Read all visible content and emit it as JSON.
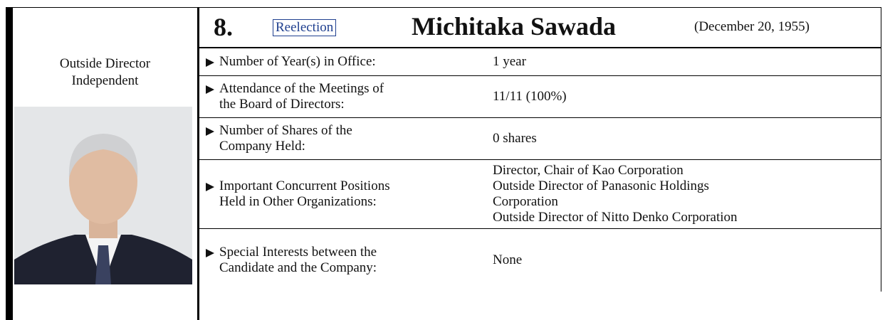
{
  "header": {
    "number": "8.",
    "badge": "Reelection",
    "name": "Michitaka Sawada",
    "birth_date": "(December 20, 1955)"
  },
  "designation": [
    "Outside Director",
    "Independent"
  ],
  "rows": [
    {
      "label": [
        "Number of Year(s) in Office:"
      ],
      "value": [
        "1 year"
      ]
    },
    {
      "label": [
        "Attendance of the Meetings of",
        "the Board of Directors:"
      ],
      "value": [
        "11/11 (100%)"
      ]
    },
    {
      "label": [
        "Number of Shares of the",
        "Company Held:"
      ],
      "value": [
        "0 shares"
      ]
    },
    {
      "label": [
        "Important Concurrent Positions",
        "Held in Other Organizations:"
      ],
      "value": [
        "Director, Chair of Kao Corporation",
        "Outside Director of Panasonic Holdings",
        "Corporation",
        "Outside Director of Nitto Denko Corporation"
      ]
    },
    {
      "label": [
        "Special Interests between the",
        "Candidate and the Company:"
      ],
      "value": [
        "None"
      ]
    }
  ]
}
